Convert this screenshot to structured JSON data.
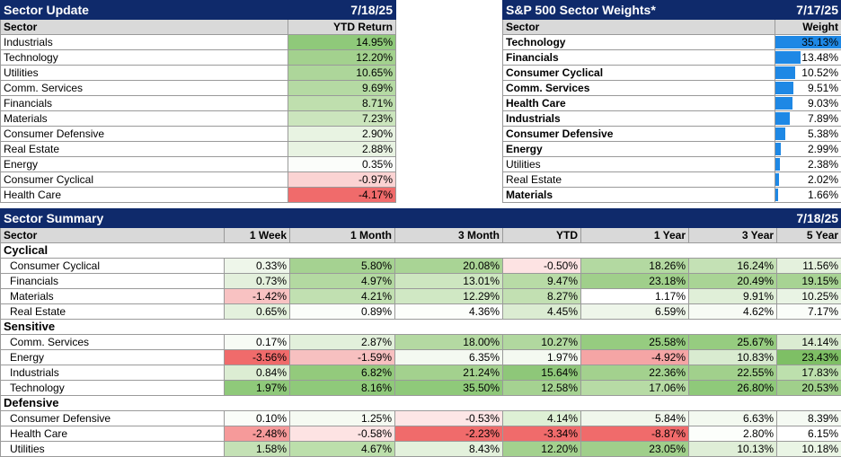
{
  "sector_update": {
    "title": "Sector Update",
    "date": "7/18/25",
    "col_sector": "Sector",
    "col_return": "YTD Return",
    "rows": [
      {
        "sector": "Industrials",
        "value": "14.95%",
        "color": "#8fc97a"
      },
      {
        "sector": "Technology",
        "value": "12.20%",
        "color": "#a3d18e"
      },
      {
        "sector": "Utilities",
        "value": "10.65%",
        "color": "#add69a"
      },
      {
        "sector": "Comm. Services",
        "value": "9.69%",
        "color": "#b5daa3"
      },
      {
        "sector": "Financials",
        "value": "8.71%",
        "color": "#bfdfae"
      },
      {
        "sector": "Materials",
        "value": "7.23%",
        "color": "#cbe5bd"
      },
      {
        "sector": "Consumer Defensive",
        "value": "2.90%",
        "color": "#e8f3e2"
      },
      {
        "sector": "Real Estate",
        "value": "2.88%",
        "color": "#e8f3e2"
      },
      {
        "sector": "Energy",
        "value": "0.35%",
        "color": "#fbfdfa"
      },
      {
        "sector": "Consumer Cyclical",
        "value": "-0.97%",
        "color": "#fbd3d3"
      },
      {
        "sector": "Health Care",
        "value": "-4.17%",
        "color": "#f06b6b"
      }
    ]
  },
  "weights": {
    "title": "S&P 500 Sector Weights*",
    "date": "7/17/25",
    "col_sector": "Sector",
    "col_weight": "Weight",
    "rows": [
      {
        "sector": "Technology",
        "value": "35.13%",
        "weight": 35.13,
        "bold": true
      },
      {
        "sector": "Financials",
        "value": "13.48%",
        "weight": 13.48,
        "bold": true
      },
      {
        "sector": "Consumer Cyclical",
        "value": "10.52%",
        "weight": 10.52,
        "bold": true
      },
      {
        "sector": "Comm. Services",
        "value": "9.51%",
        "weight": 9.51,
        "bold": true
      },
      {
        "sector": "Health Care",
        "value": "9.03%",
        "weight": 9.03,
        "bold": true
      },
      {
        "sector": "Industrials",
        "value": "7.89%",
        "weight": 7.89,
        "bold": true
      },
      {
        "sector": "Consumer Defensive",
        "value": "5.38%",
        "weight": 5.38,
        "bold": true
      },
      {
        "sector": "Energy",
        "value": "2.99%",
        "weight": 2.99,
        "bold": true
      },
      {
        "sector": "Utilities",
        "value": "2.38%",
        "weight": 2.38,
        "bold": false
      },
      {
        "sector": "Real Estate",
        "value": "2.02%",
        "weight": 2.02,
        "bold": false
      },
      {
        "sector": "Materials",
        "value": "1.66%",
        "weight": 1.66,
        "bold": true
      }
    ]
  },
  "summary": {
    "title": "Sector Summary",
    "date": "7/18/25",
    "columns": [
      "Sector",
      "1 Week",
      "1 Month",
      "3 Month",
      "YTD",
      "1 Year",
      "3 Year",
      "5 Year"
    ],
    "groups": [
      {
        "name": "Cyclical",
        "rows": [
          {
            "sector": "Consumer Cyclical",
            "values": [
              "0.33%",
              "5.80%",
              "20.08%",
              "-0.50%",
              "18.26%",
              "16.24%",
              "11.56%"
            ],
            "colors": [
              "#eef6ea",
              "#a5d291",
              "#a9d495",
              "#fde3e3",
              "#b3d9a1",
              "#c4e1b5",
              "#e4f1dd"
            ]
          },
          {
            "sector": "Financials",
            "values": [
              "0.73%",
              "4.97%",
              "13.01%",
              "9.47%",
              "23.18%",
              "20.49%",
              "19.15%"
            ],
            "colors": [
              "#e3f0dc",
              "#b3d9a1",
              "#cde6c0",
              "#b8dba6",
              "#a0cf8b",
              "#a9d495",
              "#a7d393"
            ]
          },
          {
            "sector": "Materials",
            "values": [
              "-1.42%",
              "4.21%",
              "12.29%",
              "8.27%",
              "1.17%",
              "9.91%",
              "10.25%"
            ],
            "colors": [
              "#f8c2c2",
              "#c1e0b1",
              "#d0e8c4",
              "#c2e0b2",
              "#ffffff",
              "#e0efd8",
              "#e9f4e4"
            ]
          },
          {
            "sector": "Real Estate",
            "values": [
              "0.65%",
              "0.89%",
              "4.36%",
              "4.45%",
              "6.59%",
              "4.62%",
              "7.17%"
            ],
            "colors": [
              "#e4f1dd",
              "#fbfdfa",
              "#fcfefb",
              "#dbecd2",
              "#eef6ea",
              "#f7fbf5",
              "#fafdf9"
            ]
          }
        ]
      },
      {
        "name": "Sensitive",
        "rows": [
          {
            "sector": "Comm. Services",
            "values": [
              "0.17%",
              "2.87%",
              "18.00%",
              "10.27%",
              "25.58%",
              "25.67%",
              "14.14%"
            ],
            "colors": [
              "#f7fbf5",
              "#e2f0db",
              "#b4d9a2",
              "#b1d89f",
              "#96cc80",
              "#96cc80",
              "#dbecd2"
            ]
          },
          {
            "sector": "Energy",
            "values": [
              "-3.56%",
              "-1.59%",
              "6.35%",
              "1.97%",
              "-4.92%",
              "10.83%",
              "23.43%"
            ],
            "colors": [
              "#f06b6b",
              "#f7c0c0",
              "#f4f9f1",
              "#f4f9f1",
              "#f5a5a5",
              "#d9ebd0",
              "#7ebf65"
            ]
          },
          {
            "sector": "Industrials",
            "values": [
              "0.84%",
              "6.82%",
              "21.24%",
              "15.64%",
              "22.36%",
              "22.55%",
              "17.83%"
            ],
            "colors": [
              "#dcedd3",
              "#93ca7c",
              "#a3d18e",
              "#8ec779",
              "#a3d18e",
              "#a1d08c",
              "#bde0ad"
            ]
          },
          {
            "sector": "Technology",
            "values": [
              "1.97%",
              "8.16%",
              "35.50%",
              "12.58%",
              "17.06%",
              "26.80%",
              "20.53%"
            ],
            "colors": [
              "#8fc97a",
              "#8fc97a",
              "#8fc97a",
              "#a5d291",
              "#b7dba5",
              "#8fc97a",
              "#a0cf8b"
            ]
          }
        ]
      },
      {
        "name": "Defensive",
        "rows": [
          {
            "sector": "Consumer Defensive",
            "values": [
              "0.10%",
              "1.25%",
              "-0.53%",
              "4.14%",
              "5.84%",
              "6.63%",
              "8.39%"
            ],
            "colors": [
              "#fafdf9",
              "#f5faf2",
              "#fde6e6",
              "#def0d5",
              "#f0f7ec",
              "#f3f9f0",
              "#f5faf3"
            ]
          },
          {
            "sector": "Health Care",
            "values": [
              "-2.48%",
              "-0.58%",
              "-2.23%",
              "-3.34%",
              "-8.87%",
              "2.80%",
              "6.15%"
            ],
            "colors": [
              "#f69a9a",
              "#fde3e3",
              "#f06b6b",
              "#f06b6b",
              "#f06b6b",
              "#fcfefb",
              "#ffffff"
            ]
          },
          {
            "sector": "Utilities",
            "values": [
              "1.58%",
              "4.67%",
              "8.43%",
              "12.20%",
              "23.05%",
              "10.13%",
              "10.18%"
            ],
            "colors": [
              "#c4e1b5",
              "#bcdfab",
              "#e3f1dc",
              "#a3d18e",
              "#a0cf8b",
              "#dfeed7",
              "#eaf5e5"
            ]
          }
        ]
      }
    ]
  }
}
